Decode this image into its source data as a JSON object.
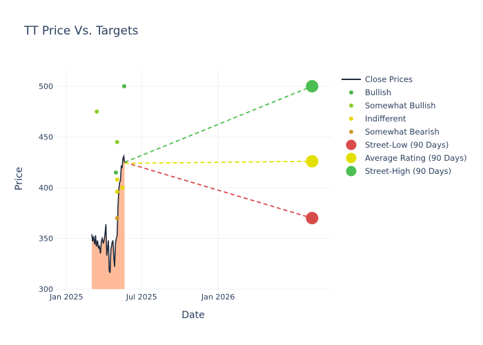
{
  "chart_data": {
    "type": "line",
    "title": "TT Price Vs. Targets",
    "xlabel": "Date",
    "ylabel": "Price",
    "xlim": [
      "2024-12-05",
      "2026-09-30"
    ],
    "ylim": [
      300,
      517
    ],
    "y_ticks": [
      300,
      350,
      400,
      450,
      500
    ],
    "x_ticks": [
      {
        "date": "2025-01-01",
        "label": "Jan 2025"
      },
      {
        "date": "2025-07-01",
        "label": "Jul 2025"
      },
      {
        "date": "2026-01-01",
        "label": "Jan 2026"
      }
    ],
    "grid": true,
    "legend": "right",
    "close_prices": {
      "name": "Close Prices",
      "color": "#1f2a3c",
      "fill": "#ffbb99",
      "points": [
        [
          "2025-03-03",
          354
        ],
        [
          "2025-03-05",
          347
        ],
        [
          "2025-03-07",
          352
        ],
        [
          "2025-03-10",
          344
        ],
        [
          "2025-03-12",
          353
        ],
        [
          "2025-03-14",
          342
        ],
        [
          "2025-03-17",
          348
        ],
        [
          "2025-03-19",
          340
        ],
        [
          "2025-03-21",
          343
        ],
        [
          "2025-03-24",
          335
        ],
        [
          "2025-03-26",
          347
        ],
        [
          "2025-03-28",
          350
        ],
        [
          "2025-03-31",
          345
        ],
        [
          "2025-04-02",
          349
        ],
        [
          "2025-04-04",
          355
        ],
        [
          "2025-04-06",
          364
        ],
        [
          "2025-04-08",
          333
        ],
        [
          "2025-04-10",
          340
        ],
        [
          "2025-04-12",
          348
        ],
        [
          "2025-04-14",
          318
        ],
        [
          "2025-04-16",
          316
        ],
        [
          "2025-04-18",
          339
        ],
        [
          "2025-04-21",
          346
        ],
        [
          "2025-04-23",
          348
        ],
        [
          "2025-04-25",
          331
        ],
        [
          "2025-04-27",
          322
        ],
        [
          "2025-04-29",
          345
        ],
        [
          "2025-05-01",
          350
        ],
        [
          "2025-05-03",
          353
        ],
        [
          "2025-05-05",
          380
        ],
        [
          "2025-05-07",
          398
        ],
        [
          "2025-05-09",
          405
        ],
        [
          "2025-05-11",
          407
        ],
        [
          "2025-05-13",
          421
        ],
        [
          "2025-05-15",
          420
        ],
        [
          "2025-05-17",
          429
        ],
        [
          "2025-05-19",
          431
        ],
        [
          "2025-05-21",
          425
        ]
      ]
    },
    "ratings": [
      {
        "name": "Bullish",
        "color": "#4cb648",
        "points": [
          [
            "2025-04-30",
            415
          ],
          [
            "2025-05-20",
            500
          ]
        ]
      },
      {
        "name": "Somewhat Bullish",
        "color": "#8bcc2a",
        "points": [
          [
            "2025-03-15",
            475
          ],
          [
            "2025-05-03",
            445
          ]
        ]
      },
      {
        "name": "Indifferent",
        "color": "#e3d800",
        "points": [
          [
            "2025-05-03",
            408
          ],
          [
            "2025-05-03",
            396
          ],
          [
            "2025-05-16",
            400
          ]
        ]
      },
      {
        "name": "Somewhat Bearish",
        "color": "#d09a2a",
        "points": [
          [
            "2025-05-03",
            370
          ]
        ]
      }
    ],
    "targets": [
      {
        "name": "Street-Low (90 Days)",
        "color": "#d84b4b",
        "start": [
          "2025-05-21",
          425
        ],
        "end": [
          "2026-08-15",
          370
        ]
      },
      {
        "name": "Average Rating (90 Days)",
        "color": "#e3e000",
        "start": [
          "2025-05-21",
          424
        ],
        "end": [
          "2026-08-15",
          426
        ]
      },
      {
        "name": "Street-High (90 Days)",
        "color": "#4cbf52",
        "start": [
          "2025-05-21",
          425
        ],
        "end": [
          "2026-08-15",
          500
        ]
      }
    ]
  }
}
